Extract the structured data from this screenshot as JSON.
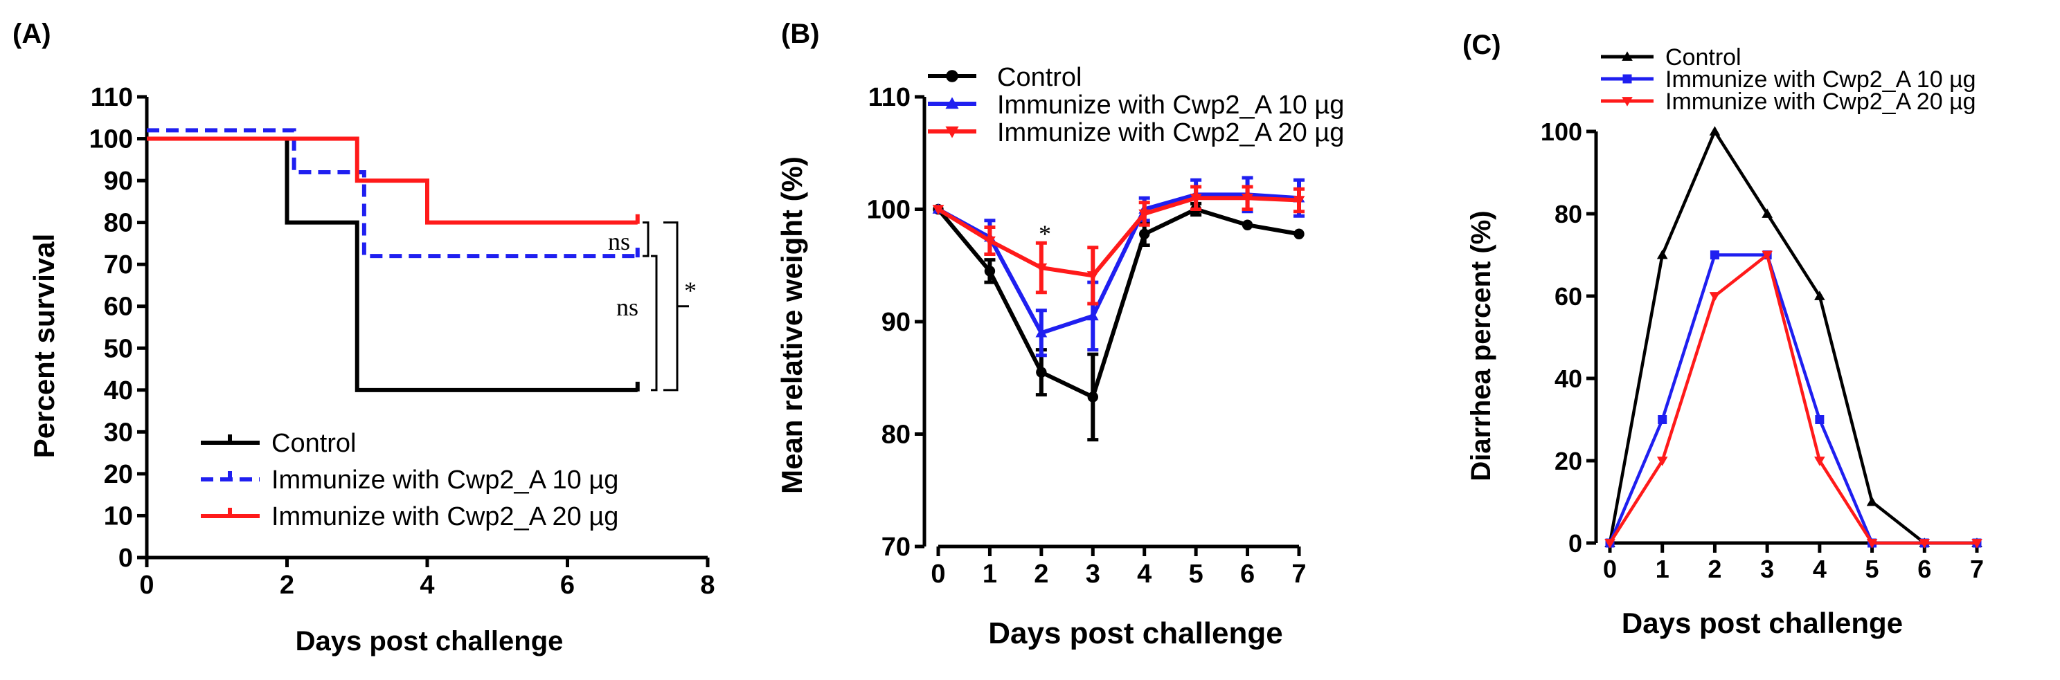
{
  "colors": {
    "control": "#000000",
    "ten": "#1f1ff0",
    "twenty": "#ff1a1a"
  },
  "legend": {
    "control": "Control",
    "ten": "Immunize with Cwp2_A 10 µg",
    "twenty": "Immunize with Cwp2_A 20 µg"
  },
  "panels": {
    "A": {
      "label": "(A)",
      "ylabel": "Percent survival",
      "xlabel": "Days post challenge",
      "ns_top": "ns",
      "ns_mid": "ns",
      "star": "*"
    },
    "B": {
      "label": "(B)",
      "ylabel": "Mean relative weight (%)",
      "xlabel": "Days post challenge",
      "star": "*"
    },
    "C": {
      "label": "(C)",
      "ylabel": "Diarrhea percent (%)",
      "xlabel": "Days post challenge"
    }
  },
  "chart_data": [
    {
      "type": "line",
      "subtype": "kaplan-meier",
      "title": "(A)",
      "xlabel": "Days post challenge",
      "ylabel": "Percent survival",
      "xlim": [
        0,
        8
      ],
      "ylim": [
        0,
        110
      ],
      "xticks": [
        0,
        2,
        4,
        6,
        8
      ],
      "yticks": [
        0,
        10,
        20,
        30,
        40,
        50,
        60,
        70,
        80,
        90,
        100,
        110
      ],
      "series": [
        {
          "name": "Control",
          "key": "control",
          "steps": [
            [
              0,
              100
            ],
            [
              2,
              80
            ],
            [
              3,
              40
            ],
            [
              7,
              40
            ]
          ],
          "dash": false
        },
        {
          "name": "Immunize with Cwp2_A 10 µg",
          "key": "ten",
          "steps": [
            [
              0,
              102
            ],
            [
              2.1,
              92
            ],
            [
              3.1,
              72
            ],
            [
              7,
              72
            ]
          ],
          "dash": true
        },
        {
          "name": "Immunize with Cwp2_A 20 µg",
          "key": "twenty",
          "steps": [
            [
              0,
              100
            ],
            [
              3,
              90
            ],
            [
              4,
              80
            ],
            [
              7,
              80
            ]
          ],
          "dash": false
        }
      ],
      "annotations": [
        "ns",
        "ns",
        "*"
      ]
    },
    {
      "type": "line",
      "title": "(B)",
      "xlabel": "Days post challenge",
      "ylabel": "Mean relative weight (%)",
      "xlim": [
        0,
        7
      ],
      "ylim": [
        70,
        110
      ],
      "xticks": [
        0,
        1,
        2,
        3,
        4,
        5,
        6,
        7
      ],
      "yticks": [
        70,
        80,
        90,
        100,
        110
      ],
      "x": [
        0,
        1,
        2,
        3,
        4,
        5,
        6,
        7
      ],
      "series": [
        {
          "name": "Control",
          "key": "control",
          "marker": "circle",
          "values": [
            100,
            94.5,
            85.5,
            83.3,
            97.8,
            100,
            98.6,
            97.8
          ],
          "errors": [
            0,
            1,
            2,
            3.8,
            1,
            0.5,
            0,
            0
          ]
        },
        {
          "name": "Immunize with Cwp2_A 10 µg",
          "key": "ten",
          "marker": "triangle-up",
          "values": [
            100,
            97.5,
            89,
            90.5,
            100,
            101.3,
            101.3,
            101
          ],
          "errors": [
            0,
            1.5,
            2,
            3,
            1,
            1.3,
            1.5,
            1.6
          ]
        },
        {
          "name": "Immunize with Cwp2_A 20 µg",
          "key": "twenty",
          "marker": "triangle-down",
          "values": [
            100,
            97.2,
            94.8,
            94.1,
            99.6,
            101,
            101,
            100.8
          ],
          "errors": [
            0,
            1.2,
            2.2,
            2.5,
            1,
            1,
            1,
            1
          ]
        }
      ],
      "annotations": [
        "*"
      ]
    },
    {
      "type": "line",
      "title": "(C)",
      "xlabel": "Days post challenge",
      "ylabel": "Diarrhea percent (%)",
      "xlim": [
        0,
        7
      ],
      "ylim": [
        0,
        100
      ],
      "xticks": [
        0,
        1,
        2,
        3,
        4,
        5,
        6,
        7
      ],
      "yticks": [
        0,
        20,
        40,
        60,
        80,
        100
      ],
      "x": [
        0,
        1,
        2,
        3,
        4,
        5,
        6,
        7
      ],
      "series": [
        {
          "name": "Control",
          "key": "control",
          "marker": "triangle-up",
          "values": [
            0,
            70,
            100,
            80,
            60,
            10,
            0,
            0
          ]
        },
        {
          "name": "Immunize with Cwp2_A 10 µg",
          "key": "ten",
          "marker": "square",
          "values": [
            0,
            30,
            70,
            70,
            30,
            0,
            0,
            0
          ]
        },
        {
          "name": "Immunize with Cwp2_A 20 µg",
          "key": "twenty",
          "marker": "triangle-down",
          "values": [
            0,
            20,
            60,
            70,
            20,
            0,
            0,
            0
          ]
        }
      ]
    }
  ]
}
